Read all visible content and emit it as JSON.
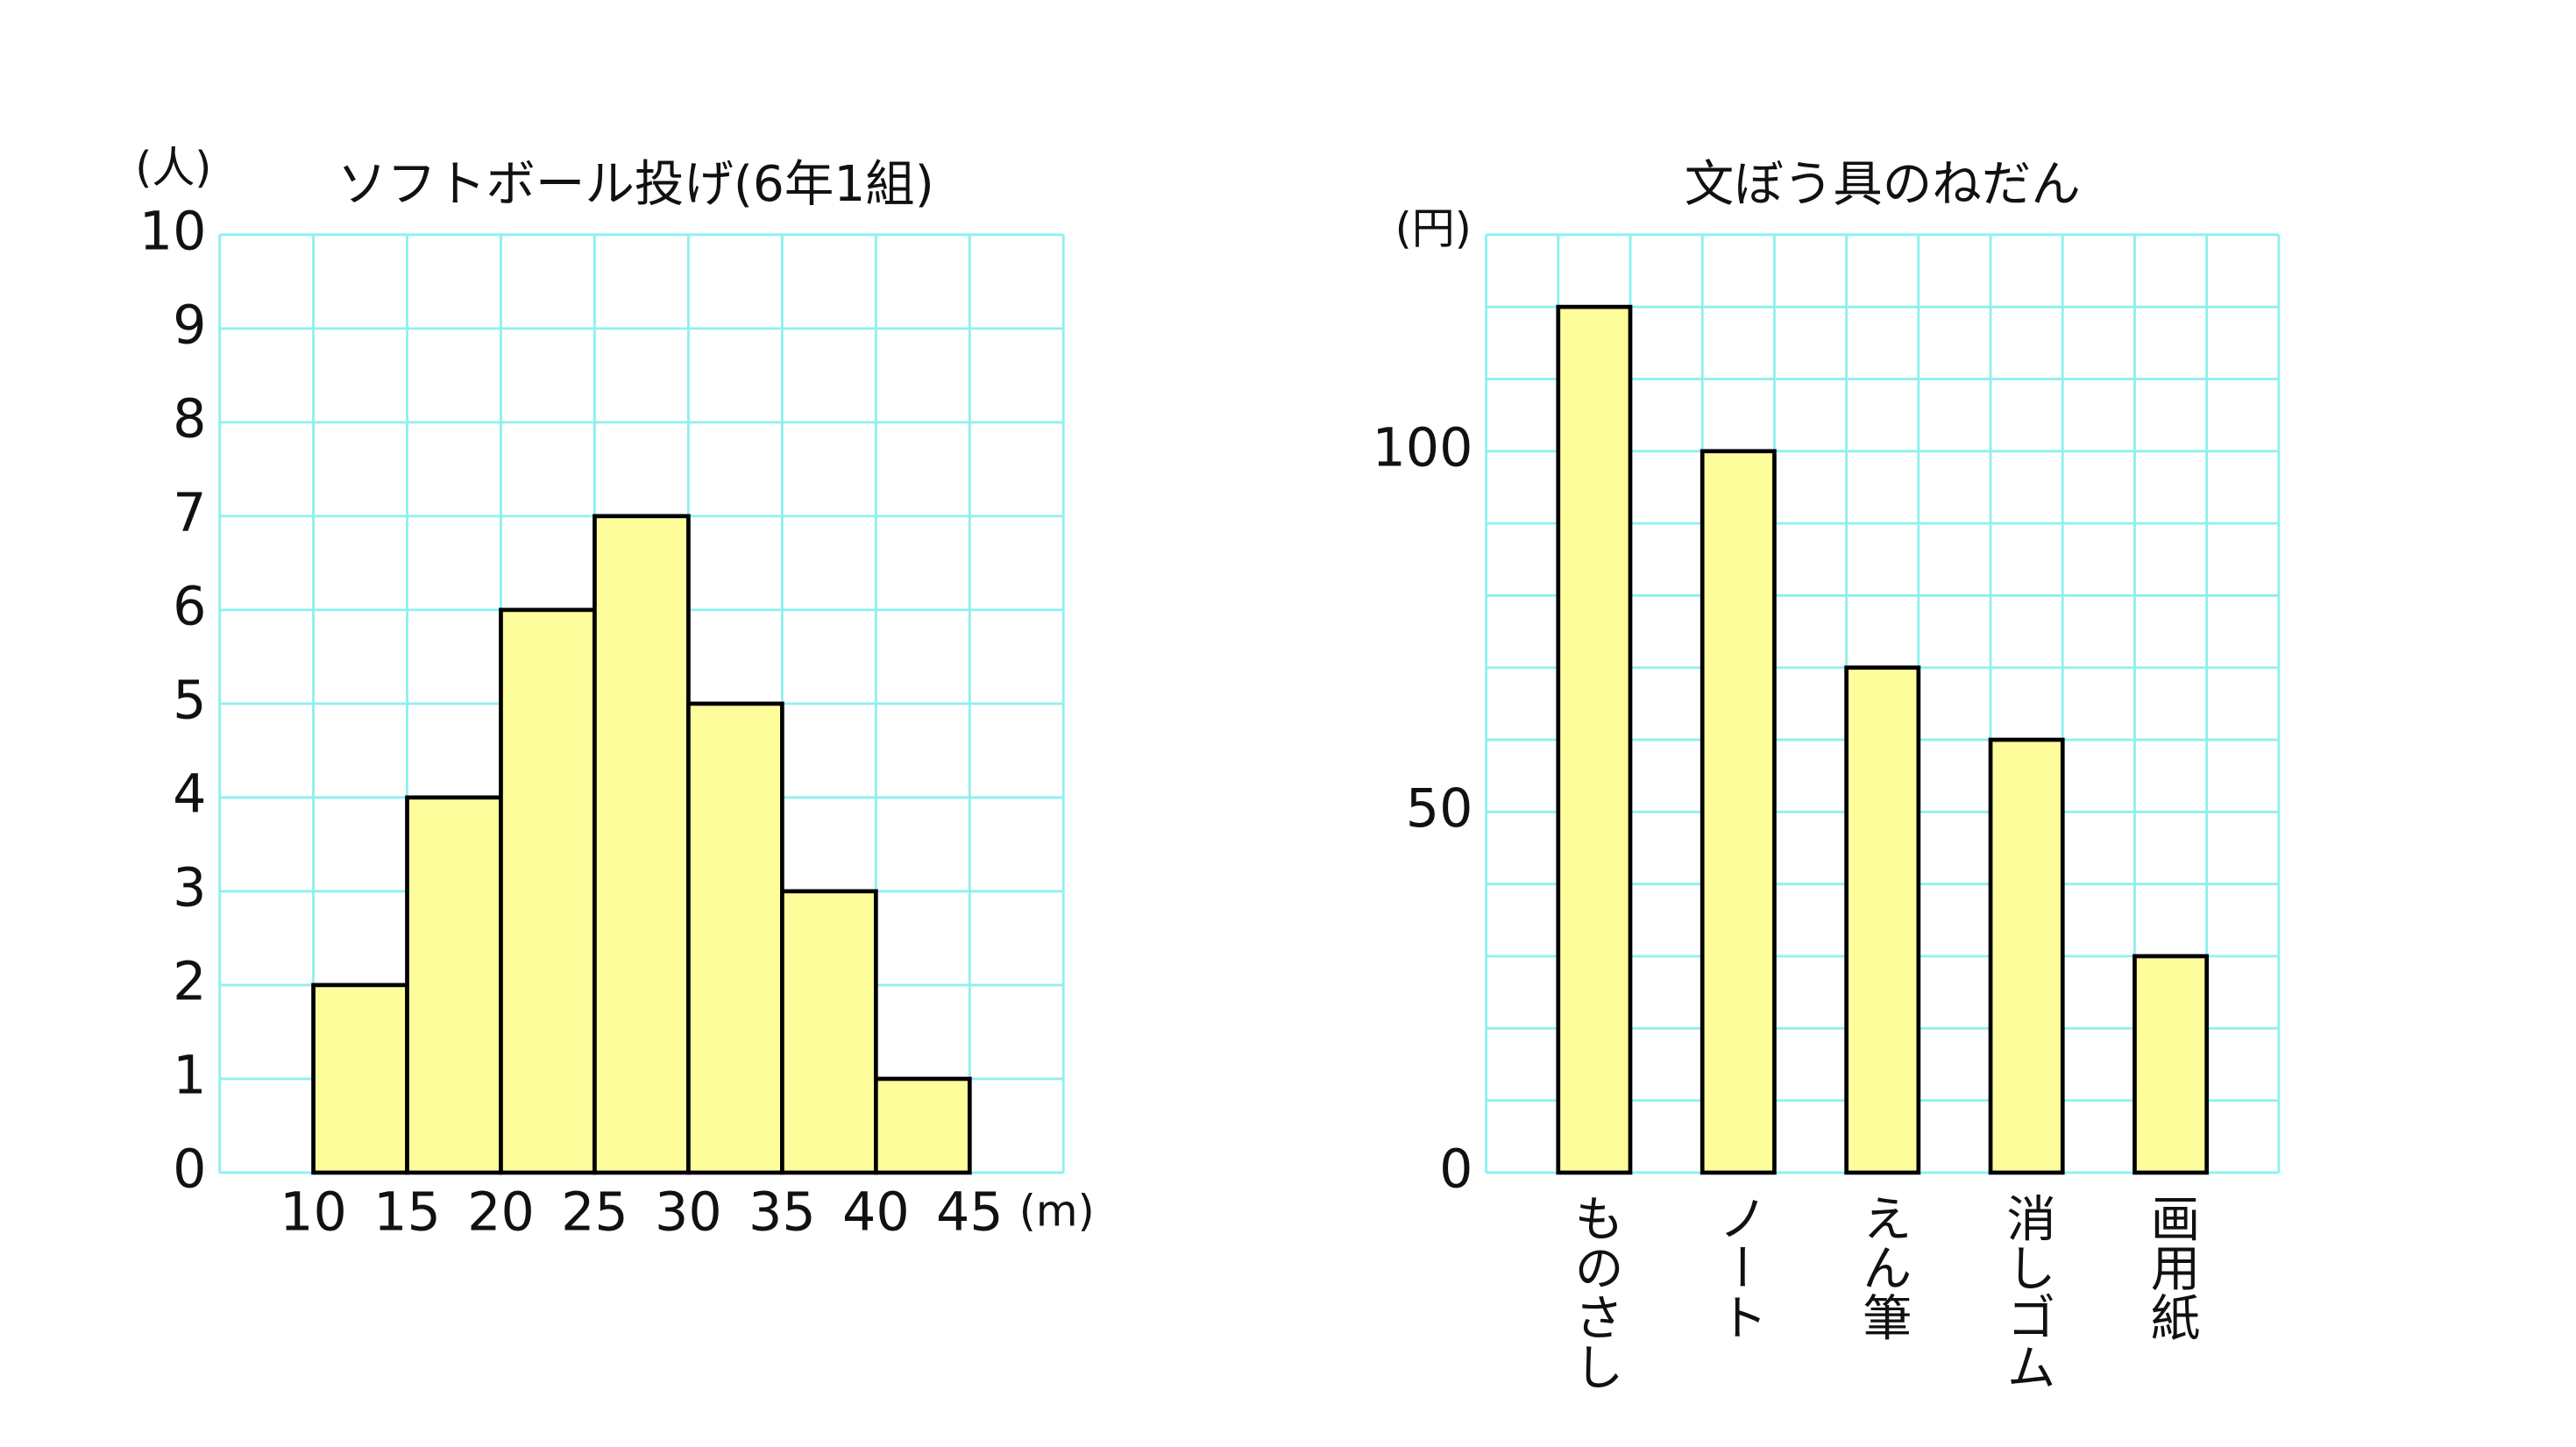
{
  "chart_data": [
    {
      "type": "histogram",
      "title": "ソフトボール投げ(6年1組)",
      "y_unit": "(人)",
      "x_unit": "(m)",
      "bins": [
        10,
        15,
        20,
        25,
        30,
        35,
        40,
        45
      ],
      "values": [
        2,
        4,
        6,
        7,
        5,
        3,
        1
      ],
      "color": "#fdfd9c",
      "xlim": [
        5,
        50
      ],
      "xticks": [
        10,
        15,
        20,
        25,
        30,
        35,
        40,
        45
      ],
      "ylim": [
        0,
        10
      ],
      "yticks": [
        0,
        1,
        2,
        3,
        4,
        5,
        6,
        7,
        8,
        9,
        10
      ],
      "grid": true
    },
    {
      "type": "bar",
      "title": "文ぼう具のねだん",
      "y_unit": "(円)",
      "categories": [
        "ものさし",
        "ノート",
        "えん筆",
        "消しゴム",
        "画用紙"
      ],
      "values": [
        120,
        100,
        70,
        60,
        30
      ],
      "color": "#fdfd9c",
      "ylim": [
        0,
        130
      ],
      "yticks": [
        0,
        50,
        100
      ],
      "grid_yticks": [
        0,
        10,
        20,
        30,
        40,
        50,
        60,
        70,
        80,
        90,
        100,
        110,
        120,
        130
      ],
      "grid": true
    }
  ]
}
